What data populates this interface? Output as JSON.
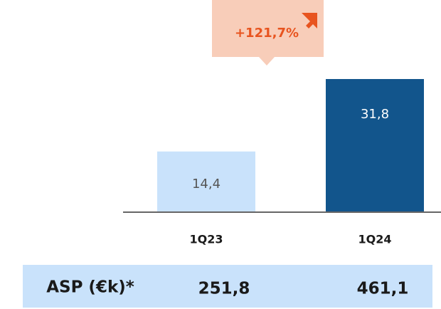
{
  "chart_data": {
    "type": "bar",
    "categories": [
      "1Q23",
      "1Q24"
    ],
    "values": [
      14.4,
      31.8
    ],
    "value_labels": [
      "14,4",
      "31,8"
    ],
    "colors": [
      "#c9e2fb",
      "#12558c"
    ],
    "annotation": "+121,7%"
  },
  "asp": {
    "label": "ASP (€k)*",
    "cells": [
      "251,8",
      "461,1"
    ]
  }
}
